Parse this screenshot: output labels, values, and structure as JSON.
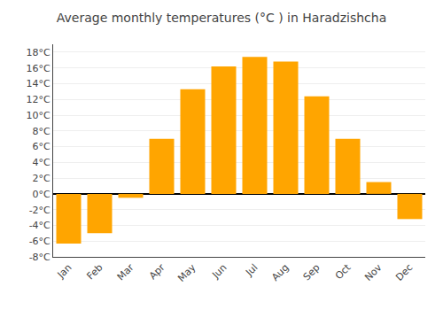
{
  "chart_data": {
    "type": "bar",
    "title": "Average monthly temperatures (°C ) in Haradzishcha",
    "categories": [
      "Jan",
      "Feb",
      "Mar",
      "Apr",
      "May",
      "Jun",
      "Jul",
      "Aug",
      "Sep",
      "Oct",
      "Nov",
      "Dec"
    ],
    "values": [
      -6.3,
      -5.0,
      -0.5,
      7.0,
      13.3,
      16.2,
      17.4,
      16.8,
      12.4,
      7.0,
      1.5,
      -3.2
    ],
    "color": "#FFA500",
    "ylim": [
      -8,
      19
    ],
    "yticks": [
      {
        "value": -8,
        "label": "-8°C"
      },
      {
        "value": -6,
        "label": "-6°C"
      },
      {
        "value": -4,
        "label": "-4°C"
      },
      {
        "value": -2,
        "label": "-2°C"
      },
      {
        "value": 0,
        "label": "0°C"
      },
      {
        "value": 2,
        "label": "2°C"
      },
      {
        "value": 4,
        "label": "4°C"
      },
      {
        "value": 6,
        "label": "6°C"
      },
      {
        "value": 8,
        "label": "8°C"
      },
      {
        "value": 10,
        "label": "10°C"
      },
      {
        "value": 12,
        "label": "12°C"
      },
      {
        "value": 14,
        "label": "14°C"
      },
      {
        "value": 16,
        "label": "16°C"
      },
      {
        "value": 18,
        "label": "18°C"
      }
    ],
    "grid": true
  }
}
